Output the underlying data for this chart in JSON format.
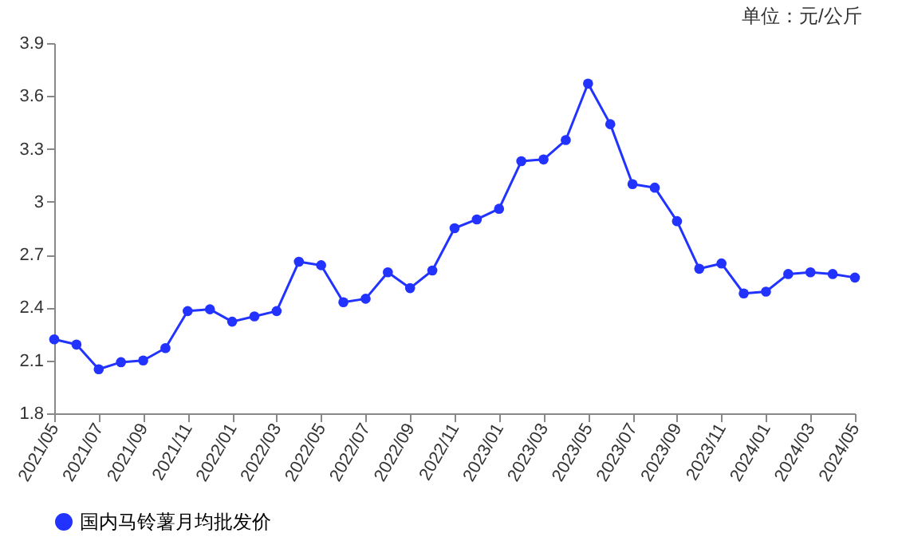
{
  "chart_data": {
    "type": "line",
    "annotations": [
      "单位：元/公斤"
    ],
    "categories": [
      "2021/05",
      null,
      "2021/07",
      null,
      "2021/09",
      null,
      "2021/11",
      null,
      "2022/01",
      null,
      "2022/03",
      null,
      "2022/05",
      null,
      "2022/07",
      null,
      "2022/09",
      null,
      "2022/11",
      null,
      "2023/01",
      null,
      "2023/03",
      null,
      "2023/05",
      null,
      "2023/07",
      null,
      "2023/09",
      null,
      "2023/11",
      null,
      "2024/01",
      null,
      "2024/03",
      null,
      "2024/05"
    ],
    "series": [
      {
        "name": "国内马铃薯月均批发价",
        "color": "#2233ff",
        "values": [
          2.22,
          2.19,
          2.05,
          2.09,
          2.1,
          2.17,
          2.38,
          2.39,
          2.32,
          2.35,
          2.38,
          2.66,
          2.64,
          2.43,
          2.45,
          2.6,
          2.51,
          2.61,
          2.85,
          2.9,
          2.96,
          3.23,
          3.24,
          3.35,
          3.67,
          3.44,
          3.1,
          3.08,
          2.89,
          2.62,
          2.65,
          2.48,
          2.49,
          2.59,
          2.6,
          2.59,
          2.57
        ]
      }
    ],
    "ylim": [
      1.8,
      3.9
    ],
    "yticks": [
      1.8,
      2.1,
      2.4,
      2.7,
      3,
      3.3,
      3.6,
      3.9
    ],
    "grid": false,
    "legend": "bottom",
    "marker": "circle",
    "line_style": "solid"
  }
}
